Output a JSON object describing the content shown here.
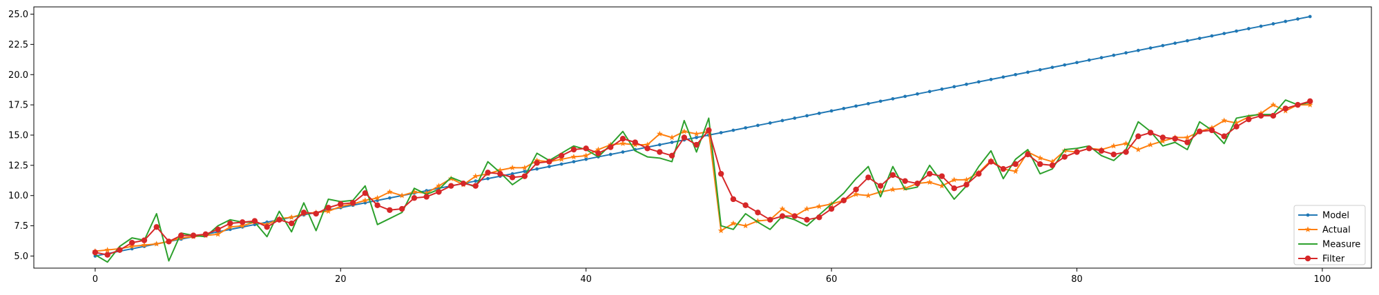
{
  "chart_data": {
    "type": "line",
    "title": "",
    "xlabel": "",
    "ylabel": "",
    "xlim": [
      -5,
      104
    ],
    "ylim": [
      4.0,
      25.6
    ],
    "xticks": [
      0,
      20,
      40,
      60,
      80,
      100
    ],
    "yticks": [
      5.0,
      7.5,
      10.0,
      12.5,
      15.0,
      17.5,
      20.0,
      22.5,
      25.0
    ],
    "xtick_labels": [
      "0",
      "20",
      "40",
      "60",
      "80",
      "100"
    ],
    "ytick_labels": [
      "5.0",
      "7.5",
      "10.0",
      "12.5",
      "15.0",
      "17.5",
      "20.0",
      "22.5",
      "25.0"
    ],
    "grid": false,
    "legend_position": "lower-right",
    "x": [
      0,
      1,
      2,
      3,
      4,
      5,
      6,
      7,
      8,
      9,
      10,
      11,
      12,
      13,
      14,
      15,
      16,
      17,
      18,
      19,
      20,
      21,
      22,
      23,
      24,
      25,
      26,
      27,
      28,
      29,
      30,
      31,
      32,
      33,
      34,
      35,
      36,
      37,
      38,
      39,
      40,
      41,
      42,
      43,
      44,
      45,
      46,
      47,
      48,
      49,
      50,
      51,
      52,
      53,
      54,
      55,
      56,
      57,
      58,
      59,
      60,
      61,
      62,
      63,
      64,
      65,
      66,
      67,
      68,
      69,
      70,
      71,
      72,
      73,
      74,
      75,
      76,
      77,
      78,
      79,
      80,
      81,
      82,
      83,
      84,
      85,
      86,
      87,
      88,
      89,
      90,
      91,
      92,
      93,
      94,
      95,
      96,
      97,
      98,
      99
    ],
    "series": [
      {
        "name": "Model",
        "color": "#1f77b4",
        "marker": "point",
        "values": [
          5.0,
          5.2,
          5.4,
          5.6,
          5.8,
          6.0,
          6.2,
          6.4,
          6.6,
          6.8,
          7.0,
          7.2,
          7.4,
          7.6,
          7.8,
          8.0,
          8.2,
          8.4,
          8.6,
          8.8,
          9.0,
          9.2,
          9.4,
          9.6,
          9.8,
          10.0,
          10.2,
          10.4,
          10.6,
          10.8,
          11.0,
          11.2,
          11.4,
          11.6,
          11.8,
          12.0,
          12.2,
          12.4,
          12.6,
          12.8,
          13.0,
          13.2,
          13.4,
          13.6,
          13.8,
          14.0,
          14.2,
          14.4,
          14.6,
          14.8,
          15.0,
          15.2,
          15.4,
          15.6,
          15.8,
          16.0,
          16.2,
          16.4,
          16.6,
          16.8,
          17.0,
          17.2,
          17.4,
          17.6,
          17.8,
          18.0,
          18.2,
          18.4,
          18.6,
          18.8,
          19.0,
          19.2,
          19.4,
          19.6,
          19.8,
          20.0,
          20.2,
          20.4,
          20.6,
          20.8,
          21.0,
          21.2,
          21.4,
          21.6,
          21.8,
          22.0,
          22.2,
          22.4,
          22.6,
          22.8,
          23.0,
          23.2,
          23.4,
          23.6,
          23.8,
          24.0,
          24.2,
          24.4,
          24.6,
          24.8
        ]
      },
      {
        "name": "Actual",
        "color": "#ff7f0e",
        "marker": "star",
        "values": [
          5.4,
          5.5,
          5.6,
          5.8,
          5.9,
          6.0,
          6.2,
          6.5,
          6.6,
          6.7,
          6.8,
          7.4,
          7.5,
          7.8,
          7.6,
          8.1,
          8.2,
          8.5,
          8.6,
          8.7,
          9.1,
          9.3,
          9.6,
          9.8,
          10.3,
          10.0,
          10.3,
          10.2,
          10.8,
          11.4,
          10.9,
          11.6,
          11.8,
          12.1,
          12.3,
          12.3,
          12.9,
          12.8,
          13.0,
          13.2,
          13.3,
          13.8,
          14.2,
          14.3,
          14.2,
          14.2,
          15.1,
          14.8,
          15.3,
          15.1,
          15.3,
          7.1,
          7.7,
          7.5,
          7.9,
          8.0,
          8.9,
          8.3,
          8.9,
          9.1,
          9.3,
          9.6,
          10.1,
          10.0,
          10.3,
          10.5,
          10.6,
          11.0,
          11.1,
          10.8,
          11.3,
          11.3,
          11.9,
          12.9,
          12.2,
          12.0,
          13.6,
          13.1,
          12.8,
          13.7,
          13.6,
          13.9,
          13.8,
          14.1,
          14.3,
          13.8,
          14.2,
          14.5,
          14.8,
          14.8,
          15.3,
          15.6,
          16.2,
          16.0,
          16.5,
          16.8,
          17.5,
          17.0,
          17.5,
          17.5
        ]
      },
      {
        "name": "Measure",
        "color": "#2ca02c",
        "marker": "none",
        "values": [
          5.1,
          4.5,
          5.8,
          6.5,
          6.3,
          8.5,
          4.6,
          6.9,
          6.7,
          6.6,
          7.5,
          8.0,
          7.8,
          7.8,
          6.6,
          8.7,
          7.0,
          9.4,
          7.1,
          9.7,
          9.5,
          9.6,
          10.8,
          7.6,
          8.1,
          8.6,
          10.6,
          10.1,
          10.5,
          11.5,
          11.1,
          10.7,
          12.8,
          11.9,
          10.9,
          11.6,
          13.5,
          12.9,
          13.5,
          14.1,
          13.8,
          13.2,
          14.2,
          15.3,
          13.7,
          13.2,
          13.1,
          12.8,
          16.2,
          13.6,
          16.4,
          7.5,
          7.2,
          8.5,
          7.8,
          7.2,
          8.3,
          8.0,
          7.5,
          8.4,
          9.3,
          10.2,
          11.4,
          12.4,
          9.9,
          12.4,
          10.5,
          10.7,
          12.5,
          11.1,
          9.7,
          10.8,
          12.4,
          13.7,
          11.4,
          13.0,
          13.8,
          11.8,
          12.2,
          13.8,
          13.9,
          14.1,
          13.3,
          12.9,
          13.8,
          16.1,
          15.3,
          14.1,
          14.4,
          13.8,
          16.1,
          15.4,
          14.3,
          16.4,
          16.6,
          16.7,
          16.7,
          17.9,
          17.5,
          17.7
        ]
      },
      {
        "name": "Filter",
        "color": "#d62728",
        "marker": "circle",
        "values": [
          5.3,
          5.1,
          5.5,
          6.1,
          6.3,
          7.4,
          6.2,
          6.7,
          6.7,
          6.8,
          7.2,
          7.7,
          7.8,
          7.9,
          7.4,
          8.0,
          7.7,
          8.6,
          8.5,
          9.0,
          9.3,
          9.4,
          10.2,
          9.2,
          8.8,
          8.9,
          9.8,
          9.9,
          10.3,
          10.8,
          11.0,
          10.8,
          11.9,
          11.8,
          11.5,
          11.6,
          12.7,
          12.8,
          13.3,
          13.8,
          13.9,
          13.5,
          14.0,
          14.7,
          14.4,
          13.9,
          13.6,
          13.3,
          14.8,
          14.2,
          15.4,
          11.8,
          9.7,
          9.2,
          8.6,
          8.0,
          8.3,
          8.3,
          8.0,
          8.2,
          8.9,
          9.6,
          10.5,
          11.5,
          10.8,
          11.7,
          11.2,
          11.0,
          11.8,
          11.6,
          10.6,
          10.9,
          11.8,
          12.8,
          12.2,
          12.6,
          13.4,
          12.6,
          12.5,
          13.2,
          13.6,
          13.9,
          13.7,
          13.4,
          13.6,
          14.9,
          15.2,
          14.8,
          14.7,
          14.4,
          15.3,
          15.4,
          14.9,
          15.7,
          16.3,
          16.6,
          16.6,
          17.2,
          17.5,
          17.8
        ]
      }
    ]
  }
}
